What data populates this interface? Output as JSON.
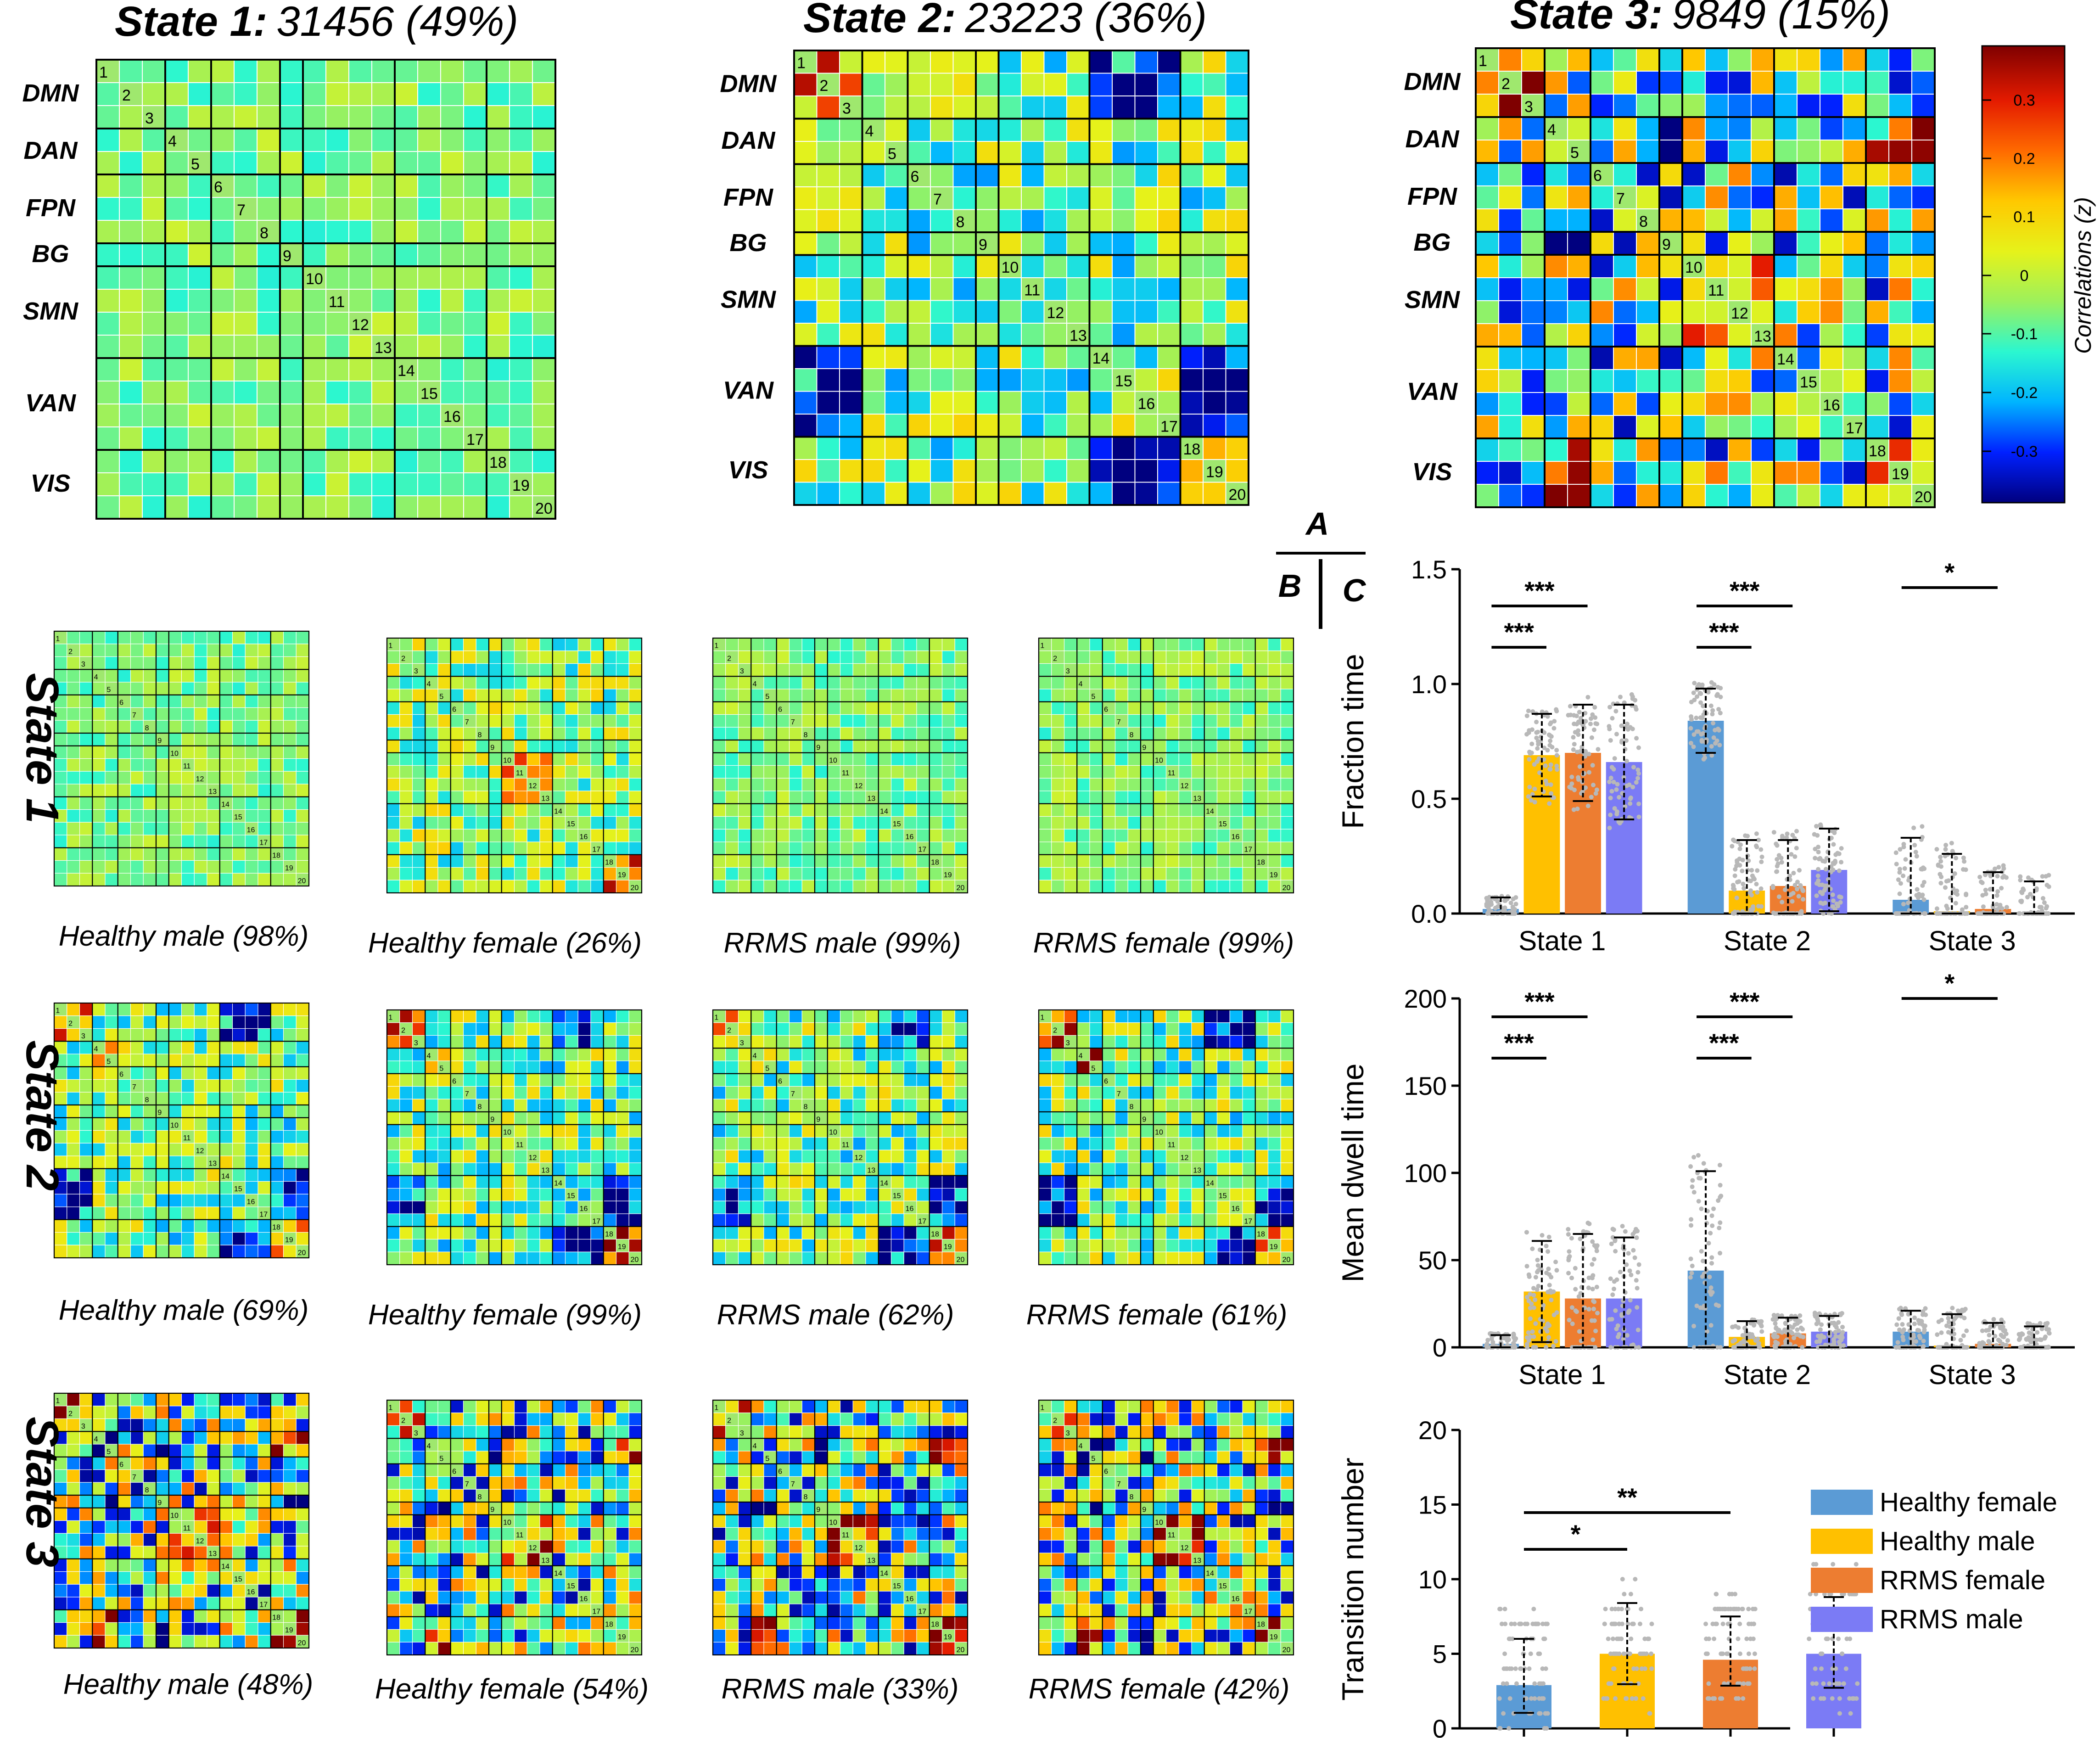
{
  "figure": {
    "panel_letters": [
      "A",
      "B",
      "C"
    ]
  },
  "colorbar": {
    "label": "Correlations (z)",
    "ticks": [
      "0.3",
      "0.2",
      "0.1",
      "0",
      "-0.1",
      "-0.2",
      "-0.3"
    ],
    "colors": [
      "#00007f",
      "#0020ff",
      "#00b4ff",
      "#2bf7d0",
      "#9cf15c",
      "#e6f21a",
      "#ffc800",
      "#ff6a00",
      "#e41b00",
      "#7f0000"
    ]
  },
  "network_labels": [
    "DMN",
    "DAN",
    "FPN",
    "BG",
    "SMN",
    "VAN",
    "VIS"
  ],
  "states": [
    {
      "name": "State 1:",
      "summary": "31456 (49%)"
    },
    {
      "name": "State 2:",
      "summary": "23223 (36%)"
    },
    {
      "name": "State 3:",
      "summary": "9849 (15%)"
    }
  ],
  "group_rows": [
    {
      "row_label": "State 1",
      "captions": [
        "Healthy male (98%)",
        "Healthy female (26%)",
        "RRMS male (99%)",
        "RRMS female (99%)"
      ]
    },
    {
      "row_label": "State 2",
      "captions": [
        "Healthy male (69%)",
        "Healthy female (99%)",
        "RRMS male (62%)",
        "RRMS female (61%)"
      ]
    },
    {
      "row_label": "State 3",
      "captions": [
        "Healthy male  (48%)",
        "Healthy female (54%)",
        "RRMS male (33%)",
        "RRMS female (42%)"
      ]
    }
  ],
  "chart_data": [
    {
      "type": "bar",
      "title": "",
      "ylabel": "Fraction time",
      "xlabel": "",
      "ylim": [
        0,
        1.5
      ],
      "yticks": [
        "0.0",
        "0.5",
        "1.0",
        "1.5"
      ],
      "categories": [
        "State 1",
        "State 2",
        "State 3"
      ],
      "series": [
        {
          "name": "Healthy female",
          "values": [
            0.02,
            0.84,
            0.06
          ],
          "sd": [
            0.05,
            0.14,
            0.27
          ]
        },
        {
          "name": "Healthy male",
          "values": [
            0.69,
            0.1,
            0.01
          ],
          "sd": [
            0.18,
            0.22,
            0.25
          ]
        },
        {
          "name": "RRMS female",
          "values": [
            0.7,
            0.12,
            0.02
          ],
          "sd": [
            0.21,
            0.2,
            0.16
          ]
        },
        {
          "name": "RRMS male",
          "values": [
            0.66,
            0.19,
            0.0
          ],
          "sd": [
            0.25,
            0.18,
            0.14
          ]
        }
      ],
      "significance": [
        {
          "label": "***",
          "category": 0,
          "from": 0,
          "to": 1
        },
        {
          "label": "***",
          "category": 0,
          "from": 0,
          "to": 2
        },
        {
          "label": "***",
          "category": 1,
          "from": 0,
          "to": 1
        },
        {
          "label": "***",
          "category": 1,
          "from": 0,
          "to": 2
        },
        {
          "label": "*",
          "category": 2,
          "from": 0,
          "to": 2
        }
      ]
    },
    {
      "type": "bar",
      "title": "",
      "ylabel": "Mean dwell time",
      "xlabel": "",
      "ylim": [
        0,
        200
      ],
      "yticks": [
        "0",
        "50",
        "100",
        "150",
        "200"
      ],
      "categories": [
        "State 1",
        "State 2",
        "State 3"
      ],
      "series": [
        {
          "name": "Healthy female",
          "values": [
            2,
            44,
            9
          ],
          "sd": [
            5,
            57,
            12
          ]
        },
        {
          "name": "Healthy male",
          "values": [
            32,
            6,
            1
          ],
          "sd": [
            29,
            9,
            18
          ]
        },
        {
          "name": "RRMS female",
          "values": [
            28,
            8,
            2
          ],
          "sd": [
            37,
            9,
            12
          ]
        },
        {
          "name": "RRMS male",
          "values": [
            28,
            9,
            0
          ],
          "sd": [
            35,
            9,
            12
          ]
        }
      ],
      "significance": [
        {
          "label": "***",
          "category": 0,
          "from": 0,
          "to": 1
        },
        {
          "label": "***",
          "category": 0,
          "from": 0,
          "to": 2
        },
        {
          "label": "***",
          "category": 1,
          "from": 0,
          "to": 1
        },
        {
          "label": "***",
          "category": 1,
          "from": 0,
          "to": 2
        },
        {
          "label": "*",
          "category": 2,
          "from": 0,
          "to": 2
        }
      ]
    },
    {
      "type": "bar",
      "title": "",
      "ylabel": "Transition number",
      "xlabel": "",
      "ylim": [
        0,
        20
      ],
      "yticks": [
        "0",
        "5",
        "10",
        "15",
        "20"
      ],
      "categories": [
        "Healthy female",
        "Healthy male",
        "RRMS female",
        "RRMS male"
      ],
      "series": [
        {
          "name": "Transition number",
          "values": [
            2.9,
            5.0,
            4.6,
            5.0
          ],
          "sd": [
            3.1,
            3.4,
            2.9,
            3.8
          ]
        }
      ],
      "significance": [
        {
          "label": "*",
          "from": 0,
          "to": 1
        },
        {
          "label": "**",
          "from": 0,
          "to": 2
        }
      ]
    }
  ],
  "legend": {
    "items": [
      {
        "label": "Healthy female",
        "color": "#5b9bd5"
      },
      {
        "label": "Healthy male",
        "color": "#ffc000"
      },
      {
        "label": "RRMS female",
        "color": "#ed7d31"
      },
      {
        "label": "RRMS male",
        "color": "#7b7bf5"
      }
    ]
  }
}
